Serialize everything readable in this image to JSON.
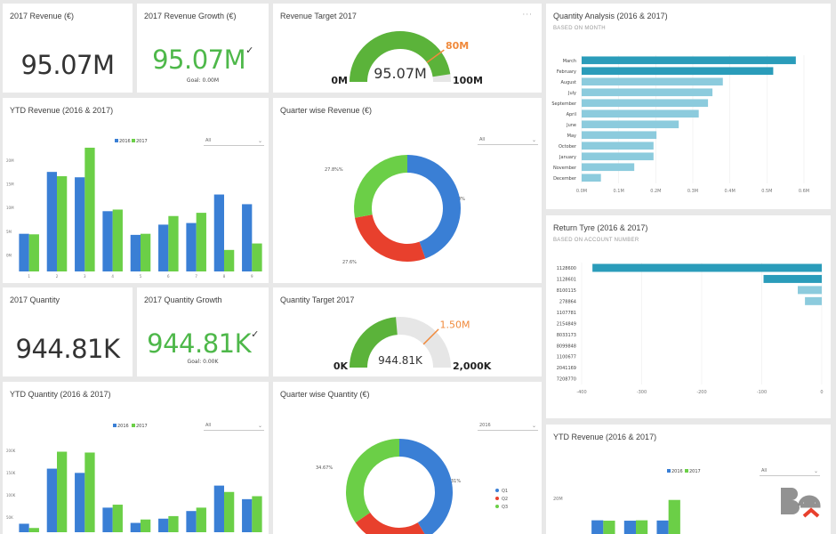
{
  "colors": {
    "blue": "#3a7fd5",
    "green": "#6bcf47",
    "red": "#e8402d",
    "teal": "#2a9cba",
    "tealLight": "#8ccbdd",
    "gaugeGreen": "#5bb33a",
    "gaugeBg": "#e6e6e6",
    "target": "#f08a3c"
  },
  "tiles": {
    "rev2017": {
      "title": "2017 Revenue (€)",
      "value": "95.07M"
    },
    "revGrowth": {
      "title": "2017 Revenue Growth (€)",
      "value": "95.07M",
      "check": "✓",
      "goal": "Goal: 0.00M"
    },
    "revTarget": {
      "title": "Revenue Target 2017",
      "value": "95.07M",
      "target": "80M",
      "min": "0M",
      "max": "100M",
      "fraction": 0.9507,
      "target_fraction": 0.8,
      "menu": "···"
    },
    "qtyAnalysis": {
      "title": "Quantity Analysis (2016 & 2017)",
      "subtitle": "BASED ON MONTH"
    },
    "ytdRev": {
      "title": "YTD Revenue (2016 & 2017)",
      "legend2016": "2016",
      "legend2017": "2017",
      "filter": "All"
    },
    "qwRev": {
      "title": "Quarter wise Revenue (€)",
      "filter": "All",
      "labels": [
        "27.8%%",
        "44.4%",
        "27.6%"
      ]
    },
    "returnTyre": {
      "title": "Return Tyre (2016 & 2017)",
      "subtitle": "BASED ON ACCOUNT NUMBER"
    },
    "qty2017": {
      "title": "2017 Quantity",
      "value": "944.81K"
    },
    "qtyGrowth": {
      "title": "2017 Quantity Growth",
      "value": "944.81K",
      "check": "✓",
      "goal": "Goal: 0.00K"
    },
    "qtyTarget": {
      "title": "Quantity Target 2017",
      "value": "944.81K",
      "target": "1.50M",
      "min": "0K",
      "max": "2,000K",
      "fraction": 0.4724,
      "target_fraction": 0.75
    },
    "ytdQty": {
      "title": "YTD Quantity (2016 & 2017)",
      "legend2016": "2016",
      "legend2017": "2017",
      "filter": "All"
    },
    "qwQty": {
      "title": "Quarter wise Quantity (€)",
      "filter": "2016",
      "labels": [
        "34.67%",
        "41.31%"
      ],
      "legend": [
        "Q1",
        "Q2",
        "Q3"
      ]
    },
    "ytdRev2": {
      "title": "YTD Revenue (2016 & 2017)",
      "legend2016": "2016",
      "legend2017": "2017",
      "filter": "All",
      "ytick": "20M"
    }
  },
  "chart_data": [
    {
      "id": "ytd-revenue",
      "type": "bar",
      "title": "YTD Revenue (2016 & 2017)",
      "categories": [
        "1",
        "2",
        "3",
        "4",
        "5",
        "6",
        "7",
        "8",
        "9"
      ],
      "yticks": [
        "20M",
        "15M",
        "10M",
        "5M",
        "0M"
      ],
      "ylim": [
        0,
        22
      ],
      "series": [
        {
          "name": "2016",
          "values": [
            7,
            18.5,
            17.5,
            11.2,
            6.8,
            8.7,
            9,
            14.3,
            12.5
          ]
        },
        {
          "name": "2017",
          "values": [
            6.9,
            17.7,
            23,
            11.5,
            7,
            10.3,
            10.9,
            4,
            5.2
          ]
        }
      ]
    },
    {
      "id": "ytd-quantity",
      "type": "bar",
      "title": "YTD Quantity (2016 & 2017)",
      "categories": [
        "1",
        "2",
        "3",
        "4",
        "5",
        "6",
        "7",
        "8",
        "9"
      ],
      "yticks": [
        "200K",
        "150K",
        "100K",
        "50K"
      ],
      "ylim": [
        0,
        210
      ],
      "series": [
        {
          "name": "2016",
          "values": [
            20,
            150,
            140,
            58,
            22,
            32,
            50,
            110,
            78
          ]
        },
        {
          "name": "2017",
          "values": [
            10,
            190,
            188,
            65,
            30,
            38,
            58,
            95,
            85
          ]
        }
      ]
    },
    {
      "id": "quantity-analysis",
      "type": "bar",
      "orientation": "horizontal",
      "title": "Quantity Analysis (2016 & 2017)",
      "categories": [
        "March",
        "February",
        "August",
        "July",
        "September",
        "April",
        "June",
        "May",
        "October",
        "January",
        "November",
        "December"
      ],
      "values": [
        0.578,
        0.517,
        0.381,
        0.353,
        0.341,
        0.316,
        0.262,
        0.202,
        0.194,
        0.194,
        0.142,
        0.052
      ],
      "xticks": [
        "0.0M",
        "0.1M",
        "0.2M",
        "0.3M",
        "0.4M",
        "0.5M",
        "0.6M"
      ],
      "xlim": [
        0,
        0.6
      ]
    },
    {
      "id": "return-tyre",
      "type": "bar",
      "orientation": "horizontal",
      "title": "Return Tyre (2016 & 2017)",
      "categories": [
        "1128600",
        "1128601",
        "8100115",
        "278864",
        "1107781",
        "2154849",
        "8033173",
        "8099848",
        "1100677",
        "2041169",
        "7208770"
      ],
      "values": [
        -382,
        -97,
        -40,
        -28,
        0,
        0,
        0,
        0,
        0,
        0,
        0
      ],
      "xticks": [
        "-400",
        "-300",
        "-200",
        "-100",
        "0"
      ],
      "xlim": [
        -400,
        0
      ]
    },
    {
      "id": "quarter-revenue",
      "type": "pie",
      "title": "Quarter wise Revenue (€)",
      "categories": [
        "Q1",
        "Q2",
        "Q3"
      ],
      "values": [
        44.4,
        27.6,
        27.8
      ]
    },
    {
      "id": "quarter-quantity",
      "type": "pie",
      "title": "Quarter wise Quantity (€)",
      "categories": [
        "Q1",
        "Q2",
        "Q3"
      ],
      "values": [
        41.31,
        24.02,
        34.67
      ]
    },
    {
      "id": "ytd-revenue-2",
      "type": "bar",
      "title": "YTD Revenue (2016 & 2017)",
      "categories": [
        "1",
        "2",
        "3"
      ],
      "ylim": [
        0,
        30
      ],
      "series": [
        {
          "name": "2016",
          "values": [
            7,
            6.8,
            6.9
          ]
        },
        {
          "name": "2017",
          "values": [
            6.8,
            7,
            17.4
          ]
        }
      ]
    }
  ]
}
